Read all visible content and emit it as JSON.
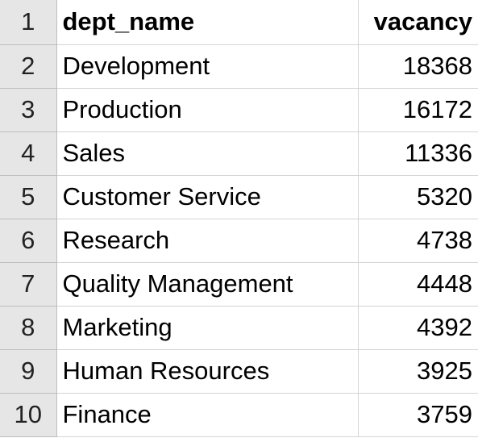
{
  "sheet": {
    "rows": [
      {
        "row": "1",
        "name": "dept_name",
        "value": "vacancy",
        "header": true
      },
      {
        "row": "2",
        "name": "Development",
        "value": "18368"
      },
      {
        "row": "3",
        "name": "Production",
        "value": "16172"
      },
      {
        "row": "4",
        "name": "Sales",
        "value": "11336"
      },
      {
        "row": "5",
        "name": "Customer Service",
        "value": "5320"
      },
      {
        "row": "6",
        "name": "Research",
        "value": "4738"
      },
      {
        "row": "7",
        "name": "Quality Management",
        "value": "4448"
      },
      {
        "row": "8",
        "name": "Marketing",
        "value": "4392"
      },
      {
        "row": "9",
        "name": "Human Resources",
        "value": "3925"
      },
      {
        "row": "10",
        "name": "Finance",
        "value": "3759"
      }
    ]
  },
  "colors": {
    "row_header_bg": "#e6e6e6",
    "gridline": "#d4d4d4",
    "text": "#000000"
  }
}
